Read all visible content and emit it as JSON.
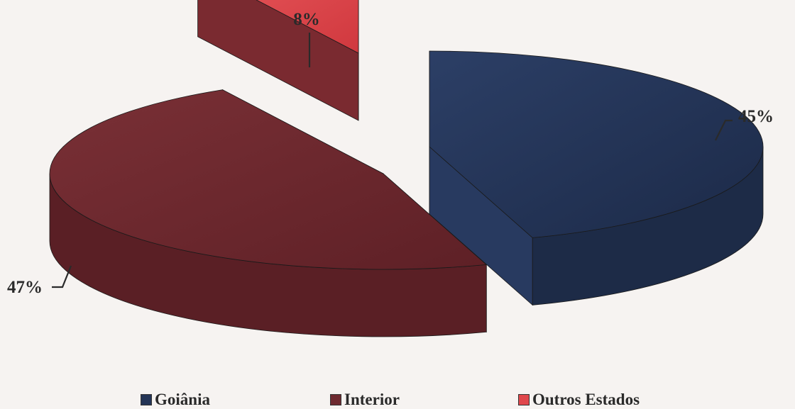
{
  "chart_data": {
    "type": "pie",
    "categories": [
      "Goiânia",
      "Interior",
      "Outros Estados"
    ],
    "values": [
      45,
      47,
      8
    ],
    "labels": [
      "45%",
      "47%",
      "8%"
    ],
    "legend_position": "bottom",
    "exploded": true,
    "three_d": true
  },
  "colors": {
    "Goiânia": "#243456",
    "Interior": "#6e2a30",
    "Outros Estados": "#e0474c"
  }
}
